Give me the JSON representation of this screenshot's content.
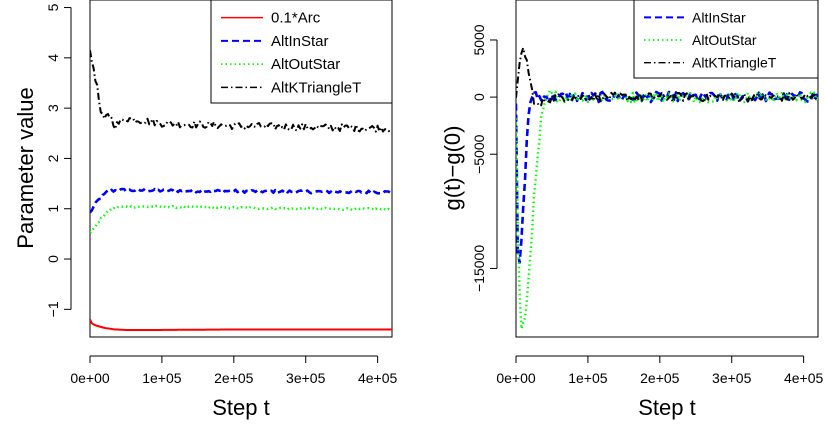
{
  "chart_data": [
    {
      "type": "line",
      "xlabel": "Step t",
      "ylabel": "Parameter value",
      "xlim": [
        0,
        420000
      ],
      "ylim": [
        -1.55,
        5.15
      ],
      "x_ticks": [
        0,
        100000,
        200000,
        300000,
        400000
      ],
      "x_tick_labels": [
        "0e+00",
        "1e+05",
        "2e+05",
        "3e+05",
        "4e+05"
      ],
      "y_ticks": [
        -1,
        0,
        1,
        2,
        3,
        4,
        5
      ],
      "y_tick_labels": [
        "−1",
        "0",
        "1",
        "2",
        "3",
        "4",
        "5"
      ],
      "grid": false,
      "legend_position": "top-right",
      "series": [
        {
          "name": "0.1*Arc",
          "color": "#ff0000",
          "dash": "solid",
          "x": [
            0,
            2000,
            5000,
            10000,
            20000,
            35000,
            50000,
            100000,
            200000,
            300000,
            420000
          ],
          "y": [
            -1.2,
            -1.27,
            -1.3,
            -1.33,
            -1.37,
            -1.4,
            -1.41,
            -1.41,
            -1.4,
            -1.4,
            -1.4
          ],
          "noise": 0
        },
        {
          "name": "AltInStar",
          "color": "#0000ff",
          "dash": "dashed",
          "x": [
            0,
            10000,
            25000,
            40000,
            100000,
            200000,
            300000,
            420000
          ],
          "y": [
            0.92,
            1.15,
            1.35,
            1.37,
            1.36,
            1.35,
            1.34,
            1.33
          ],
          "noise": 0.03
        },
        {
          "name": "AltOutStar",
          "color": "#00ff00",
          "dash": "dotted",
          "x": [
            0,
            10000,
            20000,
            30000,
            40000,
            100000,
            200000,
            300000,
            420000
          ],
          "y": [
            0.52,
            0.7,
            0.88,
            1.0,
            1.04,
            1.04,
            1.02,
            1.0,
            0.99
          ],
          "noise": 0.02
        },
        {
          "name": "AltKTriangleT",
          "color": "#000000",
          "dash": "dashdot",
          "x": [
            0,
            5000,
            10000,
            15000,
            20000,
            25000,
            35000,
            50000,
            100000,
            200000,
            300000,
            420000
          ],
          "y": [
            4.08,
            3.8,
            3.4,
            2.9,
            2.75,
            2.9,
            2.65,
            2.8,
            2.7,
            2.65,
            2.62,
            2.6
          ],
          "noise": 0.07
        }
      ]
    },
    {
      "type": "line",
      "xlabel": "Step t",
      "ylabel": "g(t)−g(0)",
      "xlim": [
        0,
        420000
      ],
      "ylim": [
        -21000,
        8500
      ],
      "x_ticks": [
        0,
        100000,
        200000,
        300000,
        400000
      ],
      "x_tick_labels": [
        "0e+00",
        "1e+05",
        "2e+05",
        "3e+05",
        "4e+05"
      ],
      "y_ticks": [
        -15000,
        -5000,
        0,
        5000
      ],
      "y_tick_labels": [
        "−15000",
        "−5000",
        "0",
        "5000"
      ],
      "grid": false,
      "legend_position": "top-right",
      "series": [
        {
          "name": "AltInStar",
          "color": "#0000ff",
          "dash": "dashed",
          "x": [
            0,
            1500,
            3000,
            6000,
            10000,
            14000,
            18000,
            22000,
            30000,
            50000,
            100000,
            200000,
            300000,
            420000
          ],
          "y": [
            -1000,
            -8000,
            -16500,
            -14000,
            -10000,
            -5000,
            -1000,
            200,
            0,
            0,
            0,
            0,
            0,
            0
          ],
          "noise": 450
        },
        {
          "name": "AltOutStar",
          "color": "#00ff00",
          "dash": "dotted",
          "x": [
            0,
            4000,
            8000,
            15000,
            25000,
            35000,
            45000,
            60000,
            100000,
            200000,
            300000,
            420000
          ],
          "y": [
            -2000,
            -16000,
            -21000,
            -18000,
            -9000,
            -2000,
            300,
            0,
            0,
            0,
            0,
            0
          ],
          "noise": 450
        },
        {
          "name": "AltKTriangleT",
          "color": "#000000",
          "dash": "dashdot",
          "x": [
            0,
            3000,
            6000,
            10000,
            14000,
            20000,
            26000,
            32000,
            40000,
            55000,
            100000,
            200000,
            300000,
            420000
          ],
          "y": [
            200,
            1500,
            3200,
            4200,
            3500,
            1200,
            -500,
            -900,
            -200,
            0,
            0,
            0,
            0,
            0
          ],
          "noise": 380
        }
      ]
    }
  ]
}
